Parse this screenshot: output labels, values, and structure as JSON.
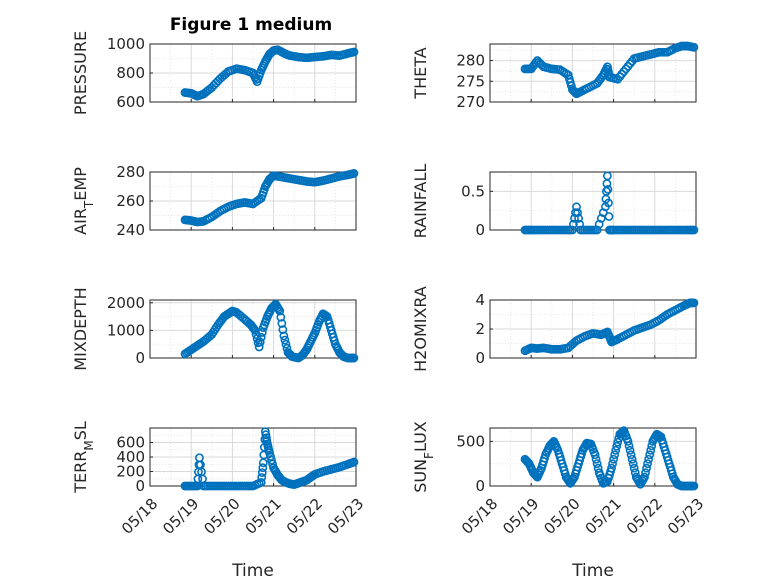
{
  "figure": {
    "title": "Figure 1 medium"
  },
  "colors": {
    "marker": "#0072BD",
    "axis": "#262626",
    "grid": "#d9d9d9",
    "minorGrid": "#e6e6e6"
  },
  "chart_data": [
    {
      "id": "pressure",
      "type": "scatter",
      "ylabel": "PRESSURE",
      "ylabel_sub": "",
      "ylim": [
        600,
        1000
      ],
      "yticks": [
        600,
        800,
        1000
      ],
      "yticklabels": [
        "600",
        "800",
        "1000"
      ],
      "show_xticklabels": false,
      "xlabel": "",
      "x": [
        0.85,
        1.0,
        1.15,
        1.3,
        1.5,
        1.7,
        1.9,
        2.1,
        2.3,
        2.5,
        2.6,
        2.7,
        2.8,
        2.9,
        3.0,
        3.1,
        3.2,
        3.3,
        3.4,
        3.6,
        3.8,
        4.0,
        4.2,
        4.4,
        4.6,
        4.8,
        4.95
      ],
      "y": [
        665,
        660,
        640,
        655,
        700,
        760,
        810,
        830,
        820,
        800,
        740,
        820,
        880,
        930,
        955,
        960,
        945,
        930,
        920,
        910,
        905,
        910,
        915,
        925,
        920,
        935,
        945
      ]
    },
    {
      "id": "theta",
      "type": "scatter",
      "ylabel": "THETA",
      "ylabel_sub": "",
      "ylim": [
        270,
        284
      ],
      "yticks": [
        270,
        275,
        280
      ],
      "yticklabels": [
        "270",
        "275",
        "280"
      ],
      "show_xticklabels": false,
      "xlabel": "",
      "x": [
        0.85,
        1.0,
        1.15,
        1.3,
        1.5,
        1.7,
        1.9,
        2.0,
        2.1,
        2.2,
        2.4,
        2.6,
        2.75,
        2.85,
        2.9,
        3.1,
        3.3,
        3.5,
        3.7,
        3.9,
        4.1,
        4.3,
        4.5,
        4.65,
        4.8,
        4.95
      ],
      "y": [
        278,
        278,
        280,
        278.5,
        278,
        277.8,
        276.5,
        273,
        272,
        272.5,
        273.5,
        274.5,
        276.5,
        278.5,
        276,
        275.5,
        278,
        280.5,
        281,
        281.5,
        282,
        282,
        283,
        283.5,
        283.5,
        283.2
      ]
    },
    {
      "id": "air_temp",
      "type": "scatter",
      "ylabel": "AIR",
      "ylabel_sub": "T",
      "ylabel_rest": "EMP",
      "ylim": [
        240,
        280
      ],
      "yticks": [
        240,
        260,
        280
      ],
      "yticklabels": [
        "240",
        "260",
        "280"
      ],
      "show_xticklabels": false,
      "xlabel": "",
      "x": [
        0.85,
        1.0,
        1.15,
        1.3,
        1.5,
        1.7,
        1.9,
        2.1,
        2.3,
        2.5,
        2.7,
        2.8,
        2.9,
        3.0,
        3.2,
        3.4,
        3.6,
        3.8,
        4.0,
        4.2,
        4.4,
        4.6,
        4.8,
        4.95
      ],
      "y": [
        247,
        246.5,
        245.5,
        246,
        249,
        253,
        256,
        258,
        259,
        258,
        262,
        270,
        275,
        277.5,
        276.5,
        275.5,
        274.5,
        273.5,
        273,
        274,
        275.5,
        277,
        278,
        279
      ]
    },
    {
      "id": "rainfall",
      "type": "scatter",
      "ylabel": "RAINFALL",
      "ylabel_sub": "",
      "ylim": [
        0,
        0.75
      ],
      "yticks": [
        0,
        0.5
      ],
      "yticklabels": [
        "0",
        "0.5"
      ],
      "show_xticklabels": false,
      "xlabel": "",
      "x": [
        0.85,
        1.0,
        1.2,
        1.4,
        1.6,
        1.8,
        2.0,
        2.1,
        2.2,
        2.4,
        2.6,
        2.8,
        2.85,
        2.9,
        3.0,
        3.2,
        3.4,
        3.6,
        3.8,
        4.0,
        4.2,
        4.4,
        4.6,
        4.8,
        4.95
      ],
      "y": [
        0,
        0,
        0,
        0,
        0,
        0,
        0,
        0.3,
        0,
        0,
        0,
        0.3,
        0.7,
        0,
        0,
        0,
        0,
        0,
        0,
        0,
        0,
        0,
        0,
        0,
        0
      ]
    },
    {
      "id": "mixdepth",
      "type": "scatter",
      "ylabel": "MIXDEPTH",
      "ylabel_sub": "",
      "ylim": [
        0,
        2100
      ],
      "yticks": [
        0,
        1000,
        2000
      ],
      "yticklabels": [
        "0",
        "1000",
        "2000"
      ],
      "show_xticklabels": false,
      "xlabel": "",
      "x": [
        0.85,
        1.0,
        1.15,
        1.3,
        1.5,
        1.65,
        1.8,
        1.9,
        2.0,
        2.1,
        2.3,
        2.45,
        2.55,
        2.65,
        2.75,
        2.85,
        2.95,
        3.05,
        3.15,
        3.25,
        3.35,
        3.45,
        3.6,
        3.7,
        3.8,
        3.9,
        4.0,
        4.1,
        4.2,
        4.3,
        4.4,
        4.5,
        4.6,
        4.7,
        4.8,
        4.9,
        4.95
      ],
      "y": [
        150,
        300,
        450,
        600,
        850,
        1200,
        1500,
        1600,
        1700,
        1650,
        1400,
        1200,
        1000,
        400,
        1100,
        1500,
        1800,
        1950,
        1700,
        800,
        200,
        50,
        0,
        100,
        300,
        600,
        900,
        1300,
        1600,
        1500,
        1000,
        500,
        200,
        50,
        0,
        0,
        0
      ]
    },
    {
      "id": "h2omixra",
      "type": "scatter",
      "ylabel": "H2OMIXRA",
      "ylabel_sub": "",
      "ylim": [
        0,
        4
      ],
      "yticks": [
        0,
        2,
        4
      ],
      "yticklabels": [
        "0",
        "2",
        "4"
      ],
      "show_xticklabels": false,
      "xlabel": "",
      "x": [
        0.85,
        1.0,
        1.15,
        1.3,
        1.5,
        1.7,
        1.9,
        2.1,
        2.3,
        2.5,
        2.7,
        2.85,
        2.95,
        3.1,
        3.3,
        3.5,
        3.7,
        3.9,
        4.1,
        4.3,
        4.5,
        4.7,
        4.85,
        4.95
      ],
      "y": [
        0.5,
        0.7,
        0.65,
        0.7,
        0.6,
        0.6,
        0.7,
        1.2,
        1.5,
        1.7,
        1.6,
        1.8,
        1.1,
        1.3,
        1.6,
        1.9,
        2.1,
        2.3,
        2.6,
        3.0,
        3.3,
        3.6,
        3.8,
        3.8
      ]
    },
    {
      "id": "terr_msl",
      "type": "scatter",
      "ylabel": "TERR",
      "ylabel_sub": "M",
      "ylabel_rest": "SL",
      "ylim": [
        0,
        800
      ],
      "yticks": [
        0,
        200,
        400,
        600
      ],
      "yticklabels": [
        "0",
        "200",
        "400",
        "600"
      ],
      "show_xticklabels": true,
      "xlabel": "Time",
      "xticklabels": [
        "05/18",
        "05/19",
        "05/20",
        "05/21",
        "05/22",
        "05/23"
      ],
      "x": [
        0.85,
        1.0,
        1.15,
        1.2,
        1.3,
        1.5,
        1.7,
        1.9,
        2.1,
        2.3,
        2.5,
        2.7,
        2.75,
        2.8,
        2.85,
        2.9,
        3.0,
        3.1,
        3.2,
        3.3,
        3.4,
        3.5,
        3.6,
        3.7,
        3.8,
        3.9,
        4.0,
        4.2,
        4.4,
        4.6,
        4.8,
        4.95
      ],
      "y": [
        0,
        0,
        0,
        390,
        0,
        0,
        0,
        0,
        0,
        0,
        0,
        50,
        320,
        750,
        580,
        460,
        250,
        150,
        80,
        50,
        30,
        20,
        40,
        60,
        80,
        120,
        160,
        200,
        230,
        260,
        300,
        330
      ]
    },
    {
      "id": "sun_flux",
      "type": "scatter",
      "ylabel": "SUN",
      "ylabel_sub": "F",
      "ylabel_rest": "LUX",
      "ylim": [
        0,
        650
      ],
      "yticks": [
        0,
        500
      ],
      "yticklabels": [
        "0",
        "500"
      ],
      "show_xticklabels": true,
      "xlabel": "Time",
      "xticklabels": [
        "05/18",
        "05/19",
        "05/20",
        "05/21",
        "05/22",
        "05/23"
      ],
      "x": [
        0.85,
        0.95,
        1.05,
        1.15,
        1.25,
        1.35,
        1.45,
        1.55,
        1.65,
        1.75,
        1.85,
        1.95,
        2.05,
        2.15,
        2.25,
        2.35,
        2.45,
        2.55,
        2.65,
        2.75,
        2.85,
        2.95,
        3.05,
        3.15,
        3.25,
        3.35,
        3.45,
        3.55,
        3.65,
        3.75,
        3.85,
        3.95,
        4.05,
        4.15,
        4.25,
        4.35,
        4.45,
        4.55,
        4.65,
        4.75,
        4.85,
        4.95
      ],
      "y": [
        300,
        250,
        150,
        100,
        200,
        350,
        450,
        500,
        400,
        250,
        100,
        30,
        100,
        250,
        400,
        480,
        470,
        350,
        150,
        30,
        50,
        200,
        400,
        580,
        620,
        500,
        300,
        100,
        20,
        100,
        300,
        500,
        580,
        550,
        400,
        250,
        100,
        20,
        0,
        0,
        0,
        0
      ]
    }
  ]
}
